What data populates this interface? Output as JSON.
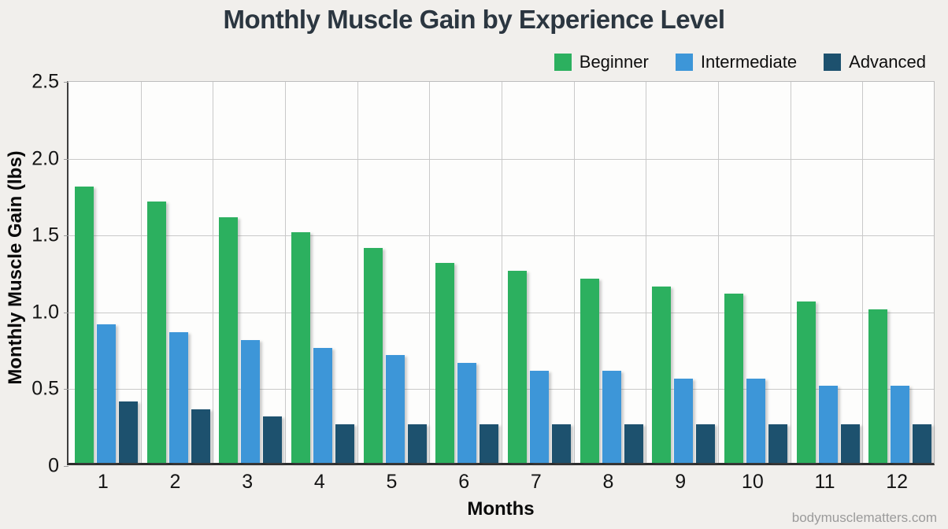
{
  "chart_data": {
    "type": "bar",
    "title": "Monthly Muscle Gain by Experience Level",
    "xlabel": "Months",
    "ylabel": "Monthly Muscle Gain (lbs)",
    "categories": [
      "1",
      "2",
      "3",
      "4",
      "5",
      "6",
      "7",
      "8",
      "9",
      "10",
      "11",
      "12"
    ],
    "series": [
      {
        "name": "Beginner",
        "color": "#2cb05f",
        "values": [
          1.8,
          1.7,
          1.6,
          1.5,
          1.4,
          1.3,
          1.25,
          1.2,
          1.15,
          1.1,
          1.05,
          1.0
        ]
      },
      {
        "name": "Intermediate",
        "color": "#3d96d8",
        "values": [
          0.9,
          0.85,
          0.8,
          0.75,
          0.7,
          0.65,
          0.6,
          0.6,
          0.55,
          0.55,
          0.5,
          0.5
        ]
      },
      {
        "name": "Advanced",
        "color": "#1d516e",
        "values": [
          0.4,
          0.35,
          0.3,
          0.25,
          0.25,
          0.25,
          0.25,
          0.25,
          0.25,
          0.25,
          0.25,
          0.25
        ]
      }
    ],
    "ylim": [
      0,
      2.5
    ],
    "yticks": [
      {
        "value": 0,
        "label": "0"
      },
      {
        "value": 0.5,
        "label": "0.5"
      },
      {
        "value": 1.0,
        "label": "1.0"
      },
      {
        "value": 1.5,
        "label": "1.5"
      },
      {
        "value": 2.0,
        "label": "2.0"
      },
      {
        "value": 2.5,
        "label": "2.5"
      }
    ],
    "grid": true,
    "legend_position": "top-right"
  },
  "watermark": "bodymusclematters.com"
}
